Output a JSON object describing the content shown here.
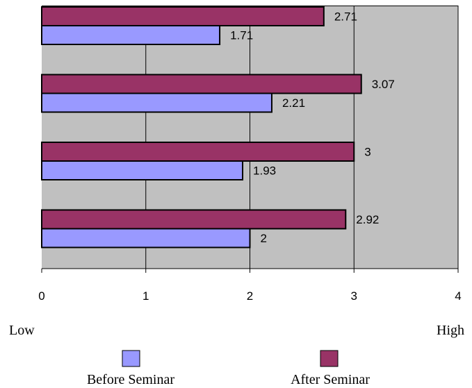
{
  "chart_data": {
    "type": "bar",
    "orientation": "horizontal",
    "xlim": [
      0,
      4
    ],
    "x_ticks": [
      0,
      1,
      2,
      3,
      4
    ],
    "grid": "vertical",
    "plot_background": "#c0c0c0",
    "categories": [
      "",
      "",
      "",
      ""
    ],
    "series": [
      {
        "name": "Before Seminar",
        "color": "#9999ff",
        "values": [
          1.71,
          2.21,
          1.93,
          2
        ]
      },
      {
        "name": "After Seminar",
        "color": "#993366",
        "values": [
          2.71,
          3.07,
          3,
          2.92
        ]
      }
    ],
    "data_labels": {
      "before": [
        "1.71",
        "2.21",
        "1.93",
        "2"
      ],
      "after": [
        "2.71",
        "3.07",
        "3",
        "2.92"
      ]
    },
    "scale_labels": {
      "low": "Low",
      "high": "High"
    },
    "legend": {
      "placement": "bottom",
      "items": [
        {
          "label": "Before Seminar",
          "color": "#9999ff"
        },
        {
          "label": "After Seminar",
          "color": "#993366"
        }
      ]
    }
  }
}
